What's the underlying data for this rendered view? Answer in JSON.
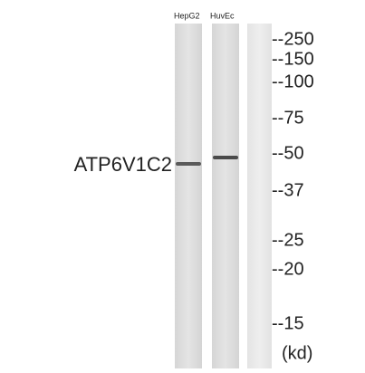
{
  "lanes": [
    {
      "label": "HepG2"
    },
    {
      "label": "HuvEc"
    }
  ],
  "protein": {
    "label": "ATP6V1C2"
  },
  "markers": [
    "--250",
    "--150",
    "--100",
    "--75",
    "--50",
    "--37",
    "--25",
    "--20",
    "--15"
  ],
  "unit": "(kd)"
}
